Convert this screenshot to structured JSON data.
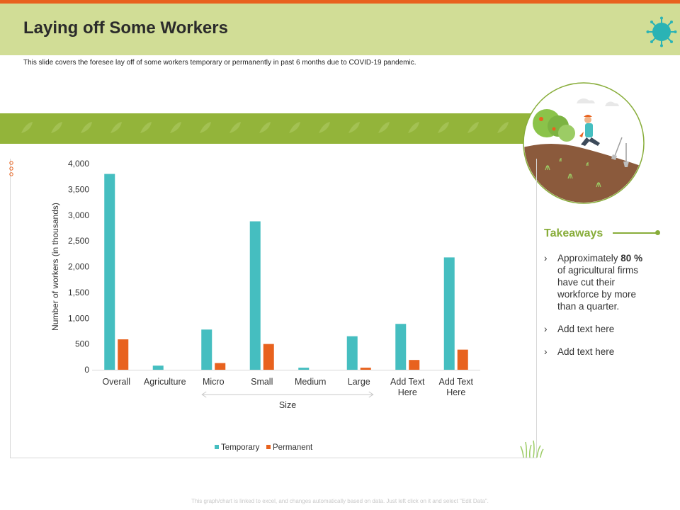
{
  "page": {
    "title": "Laying off Some Workers",
    "subtitle": "This slide covers the foresee lay off of some workers temporary or permanently in past 6 months due to COVID-19 pandemic.",
    "footer": "This graph/chart is linked to excel, and changes automatically based on data. Just left click on it and select \"Edit Data\".",
    "icons": [
      "virus-icon",
      "leaf-pattern",
      "farmer-illustration",
      "grass-icon"
    ]
  },
  "colors": {
    "accent_orange": "#e8621e",
    "header_green": "#d1dd96",
    "band_green": "#93b43a",
    "takeaway_green": "#88ad3a",
    "temporary": "#45bec0",
    "permanent": "#e8621e"
  },
  "takeaways": {
    "title": "Takeaways",
    "items": [
      {
        "pre": "Approximately ",
        "bold": "80 %",
        "post": " of agricultural firms have cut their workforce by more than a quarter."
      },
      {
        "pre": "Add text here",
        "bold": "",
        "post": ""
      },
      {
        "pre": "Add text here",
        "bold": "",
        "post": ""
      }
    ]
  },
  "chart_data": {
    "type": "bar",
    "title": "",
    "xlabel": "Size",
    "ylabel": "Number of workers (in thousands)",
    "ylim": [
      0,
      4000
    ],
    "yticks": [
      0,
      500,
      1000,
      1500,
      2000,
      2500,
      3000,
      3500,
      4000
    ],
    "ytick_labels": [
      "0",
      "500",
      "1,000",
      "1,500",
      "2,000",
      "2,500",
      "3,000",
      "3,500",
      "4,000"
    ],
    "categories": [
      "Overall",
      "Agriculture",
      "Micro",
      "Small",
      "Medium",
      "Large",
      "Add Text Here",
      "Add Text Here"
    ],
    "series": [
      {
        "name": "Temporary",
        "values": [
          3800,
          80,
          780,
          2880,
          40,
          650,
          890,
          2180
        ]
      },
      {
        "name": "Permanent",
        "values": [
          590,
          0,
          130,
          500,
          0,
          40,
          190,
          390
        ]
      }
    ],
    "size_bracket": {
      "label": "Size",
      "from_category": "Micro",
      "to_category": "Large"
    },
    "legend_position": "bottom-center",
    "grid": false
  }
}
